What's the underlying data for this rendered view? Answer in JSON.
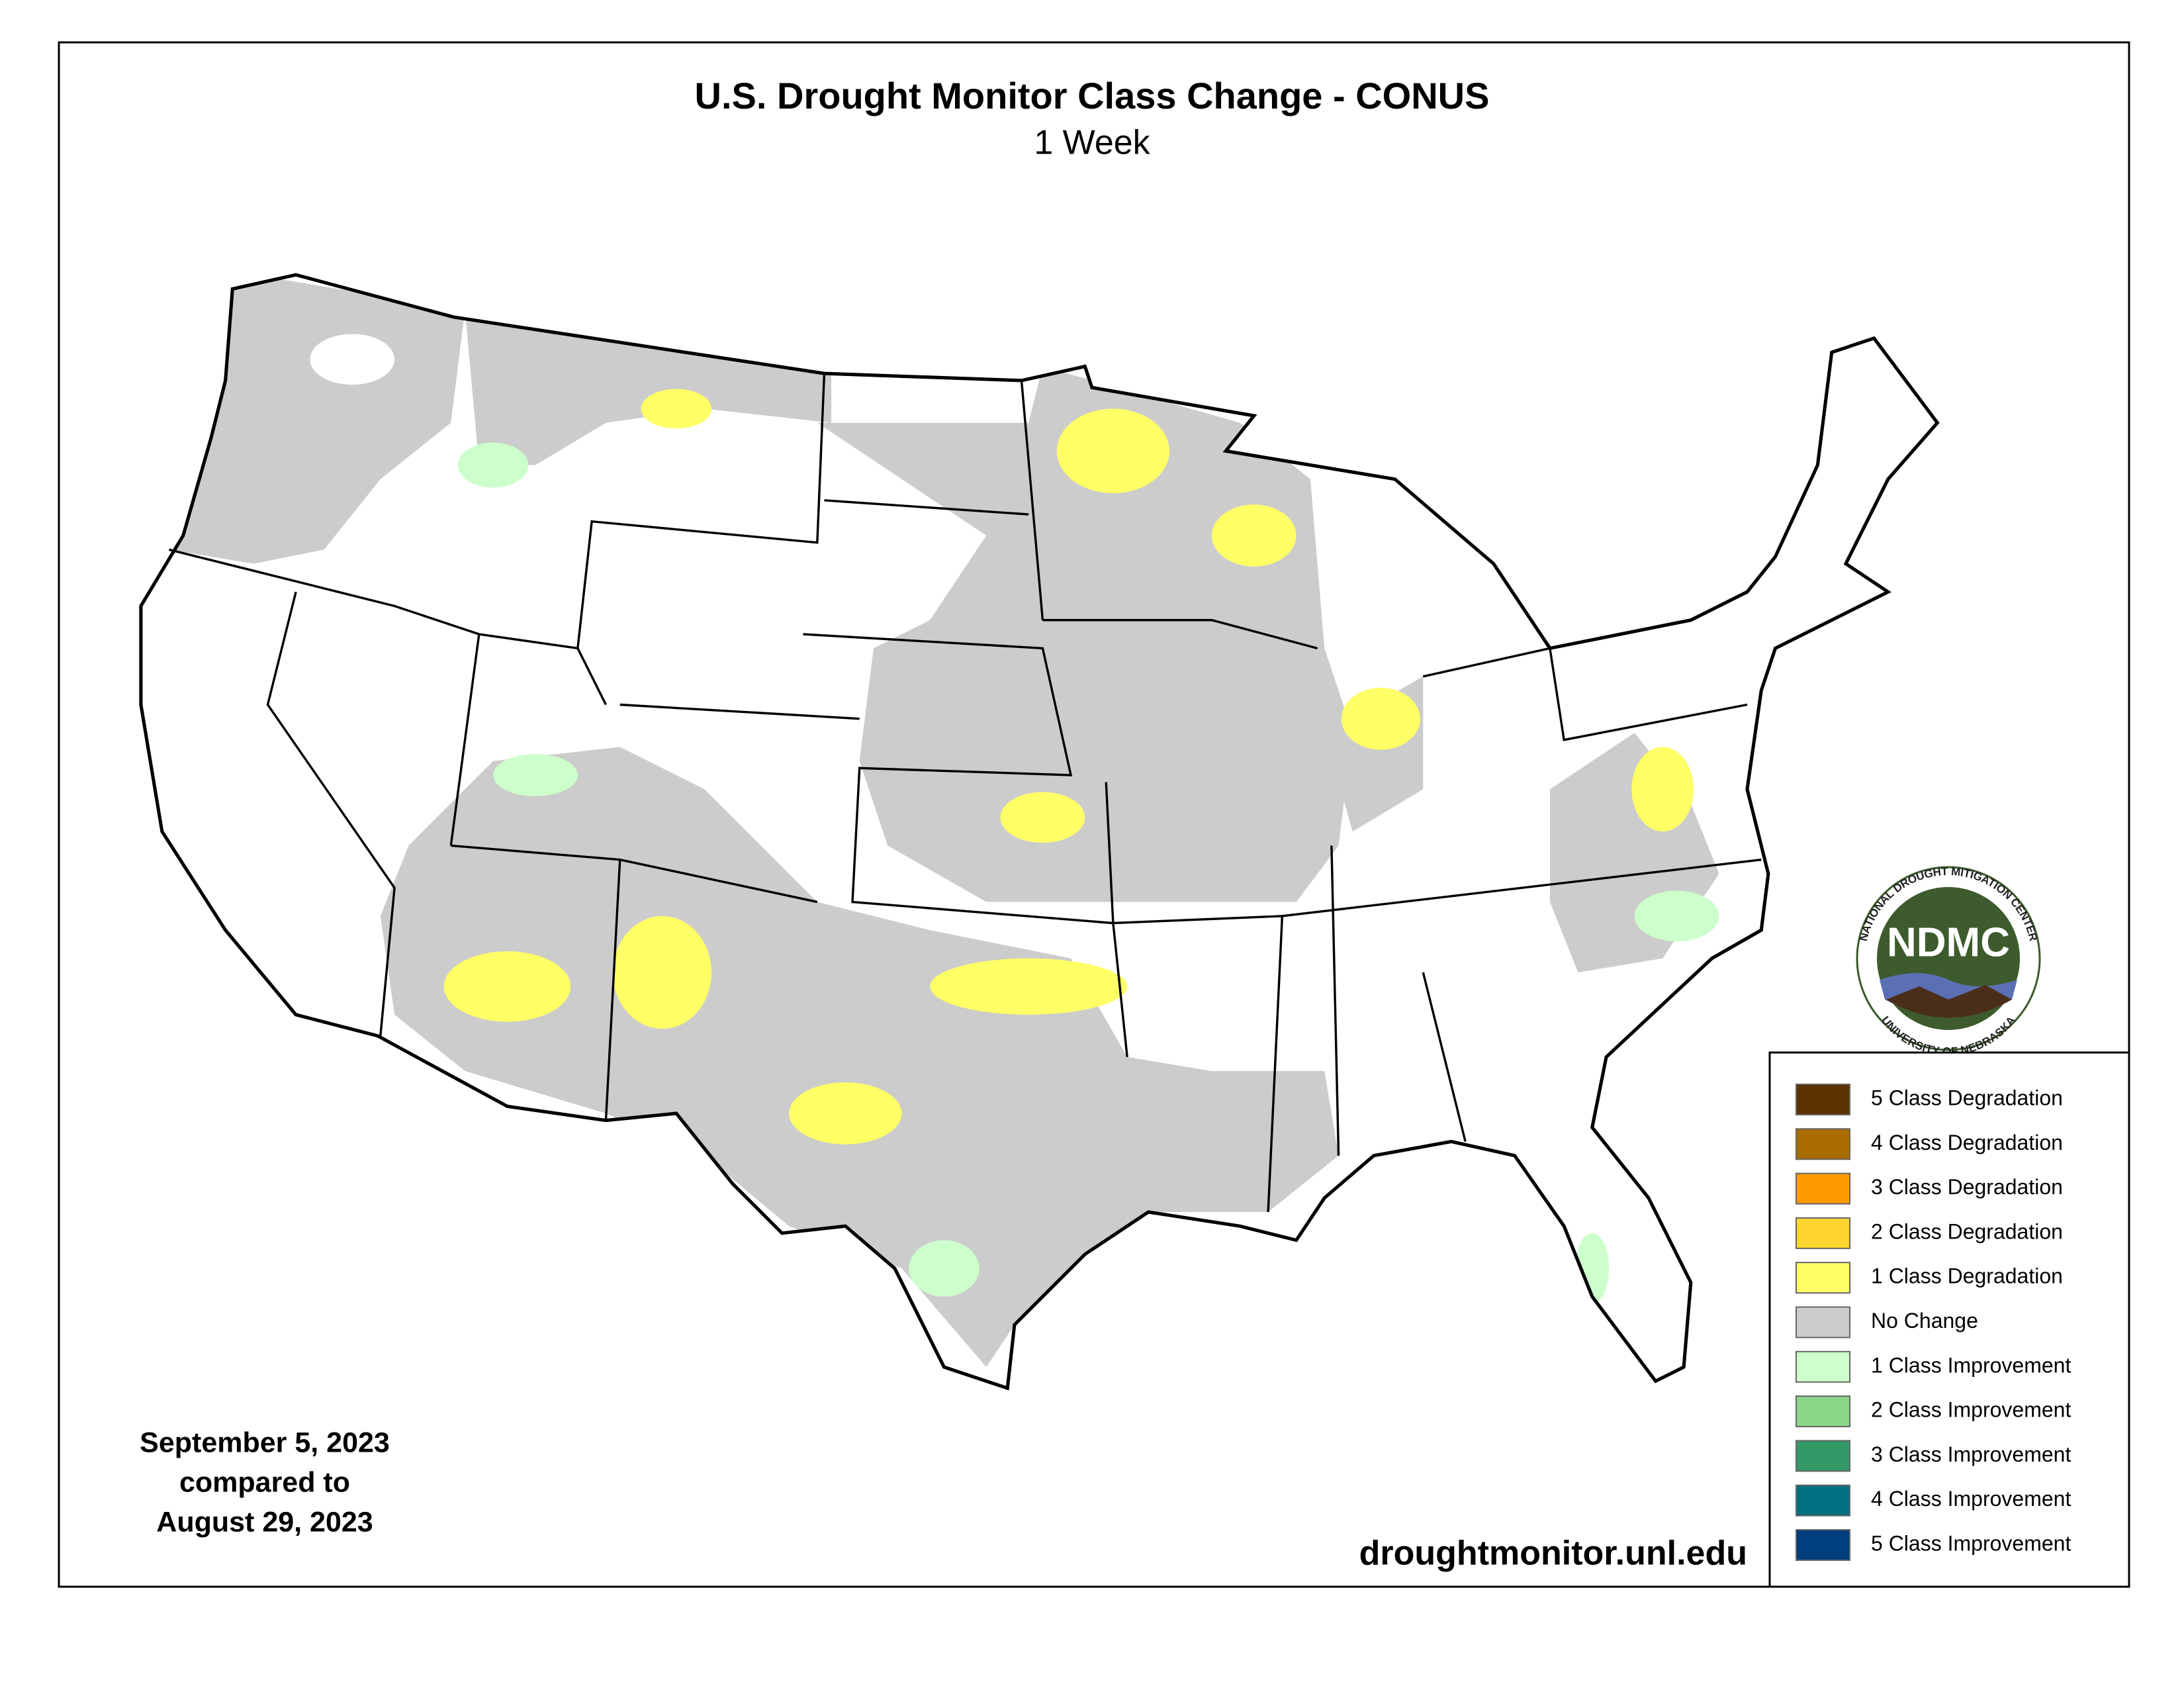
{
  "header": {
    "title": "U.S. Drought Monitor Class Change - CONUS",
    "subtitle": "1 Week"
  },
  "date_note": [
    "September 5, 2023",
    "compared to",
    "August 29, 2023"
  ],
  "url": "droughtmonitor.unl.edu",
  "logo": {
    "name": "NDMC",
    "top_text": "NATIONAL DROUGHT MITIGATION CENTER",
    "bottom_text": "UNIVERSITY OF NEBRASKA"
  },
  "legend": [
    {
      "label": "5 Class Degradation",
      "color": "#5a3200"
    },
    {
      "label": "4 Class Degradation",
      "color": "#a86c00"
    },
    {
      "label": "3 Class Degradation",
      "color": "#ff9900"
    },
    {
      "label": "2 Class Degradation",
      "color": "#ffd630"
    },
    {
      "label": "1 Class Degradation",
      "color": "#ffff66"
    },
    {
      "label": "No Change",
      "color": "#cccccc"
    },
    {
      "label": "1 Class Improvement",
      "color": "#ccffcc"
    },
    {
      "label": "2 Class Improvement",
      "color": "#88d888"
    },
    {
      "label": "3 Class Improvement",
      "color": "#339966"
    },
    {
      "label": "4 Class Improvement",
      "color": "#006f7f"
    },
    {
      "label": "5 Class Improvement",
      "color": "#003f7f"
    }
  ]
}
